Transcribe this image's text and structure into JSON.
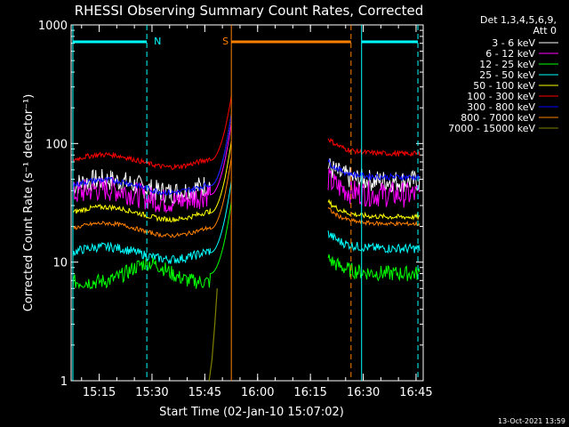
{
  "chart_data": {
    "type": "line",
    "title": "RHESSI Observing Summary Count Rates, Corrected",
    "xlabel": "Start Time (02-Jan-10 15:07:02)",
    "ylabel": "Corrected Count Rate (s⁻¹ detector⁻¹)",
    "yscale": "log",
    "ylim": [
      1,
      1000
    ],
    "xlim_minutes": [
      0,
      100
    ],
    "x_ticks": [
      "15:15",
      "15:30",
      "15:45",
      "16:00",
      "16:15",
      "16:30",
      "16:45"
    ],
    "y_ticks": [
      "1",
      "10",
      "100",
      "1000"
    ],
    "legend_header": [
      "Det 1,3,4,5,6,9,",
      "Att 0"
    ],
    "footer_date": "13-Oct-2021 13:59",
    "markers": [
      {
        "label": "N",
        "color": "#00ffff",
        "x_start": 0.5,
        "x_end": 21.5
      },
      {
        "label": "S",
        "color": "#ff8000",
        "x_start": 45.5,
        "x_end": 79.5
      },
      {
        "label": "",
        "color": "#00ffff",
        "x_start": 82.5,
        "x_end": 98.5
      }
    ],
    "series": [
      {
        "name": "3 - 6 keV",
        "color": "#ffffff",
        "pre": 44,
        "post": 48,
        "noise": 0.22
      },
      {
        "name": "6 - 12 keV",
        "color": "#ff00ff",
        "pre": 37,
        "post": 37,
        "noise": 0.25
      },
      {
        "name": "12 - 25 keV",
        "color": "#00ff00",
        "pre": 8,
        "post": 8,
        "noise": 0.15
      },
      {
        "name": "25 - 50 keV",
        "color": "#00ffff",
        "pre": 12,
        "post": 13,
        "noise": 0.09
      },
      {
        "name": "50 - 100 keV",
        "color": "#ffff00",
        "pre": 26,
        "post": 24,
        "noise": 0.05
      },
      {
        "name": "100 - 300 keV",
        "color": "#ff0000",
        "pre": 72,
        "post": 82,
        "noise": 0.05
      },
      {
        "name": "300 - 800 keV",
        "color": "#0000ff",
        "pre": 44,
        "post": 52,
        "noise": 0.06
      },
      {
        "name": "800 - 7000 keV",
        "color": "#ff8000",
        "pre": 19,
        "post": 21,
        "noise": 0.04
      },
      {
        "name": "7000 - 15000 keV",
        "color": "#808000",
        "pre": 1,
        "post": 1,
        "noise": 0.0
      }
    ]
  }
}
